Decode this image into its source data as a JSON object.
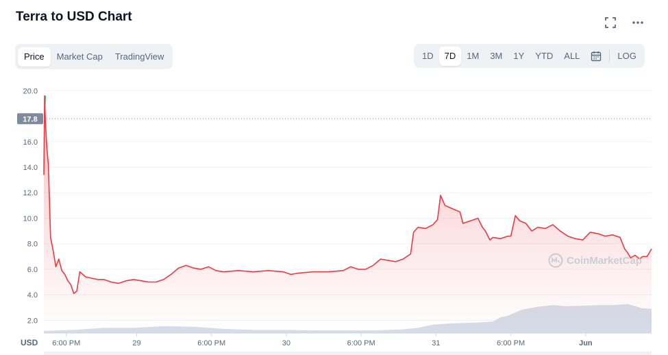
{
  "header": {
    "title": "Terra to USD Chart",
    "fullscreen_icon": "fullscreen-icon",
    "more_icon": "more-horizontal-icon"
  },
  "view_tabs": [
    {
      "label": "Price",
      "active": true
    },
    {
      "label": "Market Cap",
      "active": false
    },
    {
      "label": "TradingView",
      "active": false
    }
  ],
  "range_tabs": [
    {
      "label": "1D",
      "active": false
    },
    {
      "label": "7D",
      "active": true
    },
    {
      "label": "1M",
      "active": false
    },
    {
      "label": "3M",
      "active": false
    },
    {
      "label": "1Y",
      "active": false
    },
    {
      "label": "YTD",
      "active": false
    },
    {
      "label": "ALL",
      "active": false
    }
  ],
  "calendar_icon": "calendar-icon",
  "log_label": "LOG",
  "watermark": "CoinMarketCap",
  "colors": {
    "line": "#ea3943",
    "line_up": "#16c784",
    "volume": "#cfd6e4",
    "badge": "#808a9d"
  },
  "chart_data": {
    "type": "line",
    "ylabel": "USD",
    "ylim": [
      1.0,
      20.5
    ],
    "yticks": [
      "20.0",
      "16.0",
      "14.0",
      "12.0",
      "10.0",
      "8.0",
      "6.0",
      "4.0",
      "2.0"
    ],
    "ytick_values": [
      20,
      16,
      14,
      12,
      10,
      8,
      6,
      4,
      2
    ],
    "xlim": [
      0,
      4.06
    ],
    "xticks": [
      "6:00 PM",
      "29",
      "6:00 PM",
      "30",
      "6:00 PM",
      "31",
      "6:00 PM",
      "Jun"
    ],
    "xtick_values": [
      0.15,
      0.62,
      1.12,
      1.62,
      2.12,
      2.62,
      3.12,
      3.62
    ],
    "current_price": 17.8,
    "current_price_label": "17.8",
    "series": [
      {
        "values": [
          [
            0.0,
            13.4
          ],
          [
            0.005,
            19.6
          ],
          [
            0.01,
            17.6
          ],
          [
            0.02,
            15.5
          ],
          [
            0.03,
            14.2
          ],
          [
            0.045,
            8.5
          ],
          [
            0.06,
            7.6
          ],
          [
            0.08,
            6.2
          ],
          [
            0.1,
            6.8
          ],
          [
            0.12,
            5.9
          ],
          [
            0.14,
            5.6
          ],
          [
            0.16,
            5.1
          ],
          [
            0.18,
            4.8
          ],
          [
            0.2,
            4.1
          ],
          [
            0.22,
            4.3
          ],
          [
            0.24,
            5.8
          ],
          [
            0.26,
            5.6
          ],
          [
            0.28,
            5.4
          ],
          [
            0.32,
            5.3
          ],
          [
            0.36,
            5.2
          ],
          [
            0.4,
            5.2
          ],
          [
            0.45,
            5.0
          ],
          [
            0.5,
            4.9
          ],
          [
            0.55,
            5.1
          ],
          [
            0.6,
            5.2
          ],
          [
            0.65,
            5.1
          ],
          [
            0.7,
            5.0
          ],
          [
            0.75,
            5.0
          ],
          [
            0.8,
            5.2
          ],
          [
            0.85,
            5.6
          ],
          [
            0.9,
            6.1
          ],
          [
            0.95,
            6.3
          ],
          [
            1.0,
            6.1
          ],
          [
            1.05,
            6.0
          ],
          [
            1.1,
            6.2
          ],
          [
            1.15,
            5.9
          ],
          [
            1.2,
            5.8
          ],
          [
            1.3,
            5.9
          ],
          [
            1.4,
            5.8
          ],
          [
            1.5,
            5.9
          ],
          [
            1.6,
            5.8
          ],
          [
            1.65,
            5.6
          ],
          [
            1.7,
            5.7
          ],
          [
            1.8,
            5.8
          ],
          [
            1.9,
            5.8
          ],
          [
            2.0,
            5.9
          ],
          [
            2.05,
            6.2
          ],
          [
            2.1,
            6.0
          ],
          [
            2.15,
            6.0
          ],
          [
            2.2,
            6.3
          ],
          [
            2.25,
            6.8
          ],
          [
            2.3,
            6.7
          ],
          [
            2.35,
            6.6
          ],
          [
            2.4,
            6.8
          ],
          [
            2.45,
            7.2
          ],
          [
            2.47,
            8.9
          ],
          [
            2.5,
            9.3
          ],
          [
            2.55,
            9.2
          ],
          [
            2.6,
            9.5
          ],
          [
            2.63,
            9.9
          ],
          [
            2.65,
            11.8
          ],
          [
            2.68,
            11.0
          ],
          [
            2.72,
            10.8
          ],
          [
            2.78,
            10.5
          ],
          [
            2.8,
            9.6
          ],
          [
            2.85,
            9.8
          ],
          [
            2.9,
            10.0
          ],
          [
            2.93,
            9.3
          ],
          [
            2.95,
            9.0
          ],
          [
            2.98,
            8.3
          ],
          [
            3.0,
            8.5
          ],
          [
            3.05,
            8.4
          ],
          [
            3.1,
            8.6
          ],
          [
            3.12,
            8.6
          ],
          [
            3.15,
            10.2
          ],
          [
            3.18,
            9.8
          ],
          [
            3.22,
            9.6
          ],
          [
            3.26,
            9.0
          ],
          [
            3.3,
            9.3
          ],
          [
            3.35,
            9.2
          ],
          [
            3.4,
            9.5
          ],
          [
            3.45,
            9.0
          ],
          [
            3.5,
            8.6
          ],
          [
            3.55,
            8.4
          ],
          [
            3.6,
            8.3
          ],
          [
            3.65,
            8.9
          ],
          [
            3.7,
            8.8
          ],
          [
            3.75,
            8.6
          ],
          [
            3.8,
            8.7
          ],
          [
            3.85,
            8.5
          ],
          [
            3.88,
            7.6
          ],
          [
            3.9,
            7.3
          ],
          [
            3.92,
            6.9
          ],
          [
            3.95,
            7.1
          ],
          [
            3.98,
            6.8
          ],
          [
            4.0,
            7.0
          ],
          [
            4.03,
            7.0
          ],
          [
            4.06,
            7.6
          ]
        ]
      }
    ],
    "volume": {
      "values": [
        [
          0.0,
          0.04
        ],
        [
          0.2,
          0.06
        ],
        [
          0.4,
          0.1
        ],
        [
          0.6,
          0.1
        ],
        [
          0.8,
          0.13
        ],
        [
          1.0,
          0.12
        ],
        [
          1.2,
          0.08
        ],
        [
          1.4,
          0.06
        ],
        [
          1.6,
          0.06
        ],
        [
          1.8,
          0.05
        ],
        [
          2.0,
          0.05
        ],
        [
          2.2,
          0.05
        ],
        [
          2.4,
          0.07
        ],
        [
          2.5,
          0.1
        ],
        [
          2.6,
          0.16
        ],
        [
          2.7,
          0.18
        ],
        [
          2.8,
          0.19
        ],
        [
          2.9,
          0.2
        ],
        [
          3.0,
          0.22
        ],
        [
          3.05,
          0.3
        ],
        [
          3.1,
          0.33
        ],
        [
          3.2,
          0.45
        ],
        [
          3.3,
          0.5
        ],
        [
          3.4,
          0.53
        ],
        [
          3.5,
          0.51
        ],
        [
          3.6,
          0.52
        ],
        [
          3.7,
          0.53
        ],
        [
          3.8,
          0.53
        ],
        [
          3.9,
          0.55
        ],
        [
          4.0,
          0.47
        ],
        [
          4.06,
          0.46
        ]
      ]
    }
  }
}
